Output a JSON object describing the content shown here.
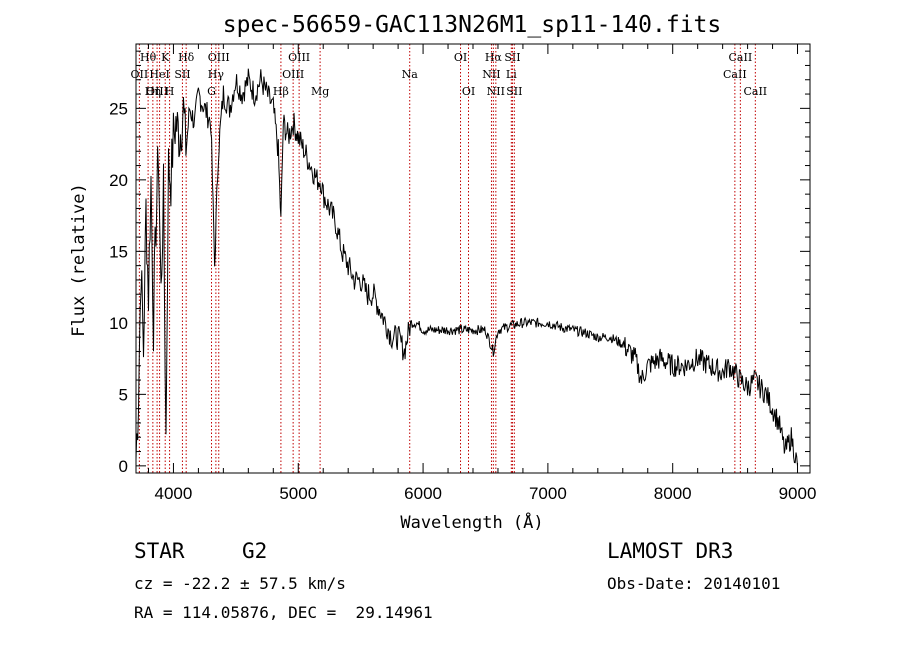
{
  "chart_data": {
    "type": "line",
    "title": "spec-56659-GAC113N26M1_sp11-140.fits",
    "xlabel": "Wavelength (Å)",
    "ylabel": "Flux (relative)",
    "xlim": [
      3700,
      9100
    ],
    "ylim": [
      -0.5,
      29.5
    ],
    "xticks": [
      4000,
      5000,
      6000,
      7000,
      8000,
      9000
    ],
    "yticks": [
      0,
      5,
      10,
      15,
      20,
      25
    ],
    "spectrum": {
      "name": "flux",
      "color": "#000000",
      "x": [
        3700,
        3720,
        3740,
        3760,
        3780,
        3800,
        3820,
        3840,
        3860,
        3880,
        3900,
        3920,
        3940,
        3960,
        3980,
        4000,
        4020,
        4050,
        4080,
        4100,
        4130,
        4170,
        4200,
        4250,
        4300,
        4330,
        4360,
        4400,
        4450,
        4500,
        4550,
        4600,
        4650,
        4700,
        4750,
        4800,
        4840,
        4861,
        4880,
        4920,
        4960,
        5000,
        5050,
        5100,
        5150,
        5180,
        5200,
        5250,
        5300,
        5350,
        5400,
        5450,
        5500,
        5550,
        5600,
        5650,
        5700,
        5750,
        5800,
        5850,
        5900,
        5950,
        6000,
        6100,
        6200,
        6300,
        6400,
        6500,
        6563,
        6600,
        6700,
        6800,
        6900,
        7000,
        7100,
        7200,
        7300,
        7400,
        7500,
        7600,
        7700,
        7750,
        7800,
        7900,
        8000,
        8100,
        8200,
        8300,
        8400,
        8450,
        8500,
        8540,
        8600,
        8660,
        8700,
        8750,
        8800,
        8850,
        8900,
        8950,
        9000
      ],
      "y": [
        0.5,
        5,
        14,
        8,
        18,
        12,
        20,
        10,
        17,
        22,
        12,
        19,
        2,
        21,
        20,
        23,
        24,
        23,
        25,
        22,
        25,
        24,
        26,
        25,
        24,
        14,
        22,
        26,
        25,
        27,
        26,
        27,
        26,
        27,
        26,
        25,
        22,
        17,
        24,
        23,
        24,
        23,
        22,
        21,
        20,
        20,
        19,
        18,
        17,
        15,
        14,
        13,
        13,
        12,
        12,
        11,
        10,
        9,
        9,
        8,
        10,
        10,
        9.5,
        9.5,
        9.5,
        9.5,
        9.5,
        9.5,
        8,
        9.5,
        9.8,
        10,
        10,
        10,
        9.7,
        9.5,
        9.3,
        9,
        9,
        8.5,
        7.5,
        6,
        7,
        7.5,
        7,
        7,
        7.5,
        7,
        6.5,
        7,
        6.5,
        6,
        5.5,
        6,
        5.5,
        5,
        4,
        3,
        1,
        2,
        0
      ]
    },
    "spectral_lines": [
      {
        "label": "Hθ",
        "wavelength": 3797,
        "row": 1
      },
      {
        "label": "OII",
        "wavelength": 3727,
        "row": 2
      },
      {
        "label": "OIII",
        "wavelength": 3869,
        "row": 3
      },
      {
        "label": "K",
        "wavelength": 3934,
        "row": 1
      },
      {
        "label": "HeI",
        "wavelength": 3889,
        "row": 2
      },
      {
        "label": "Hη",
        "wavelength": 3835,
        "row": 3
      },
      {
        "label": "Hδ",
        "wavelength": 4102,
        "row": 1
      },
      {
        "label": "SII",
        "wavelength": 4072,
        "row": 2
      },
      {
        "label": "H",
        "wavelength": 3969,
        "row": 3
      },
      {
        "label": "OIII",
        "wavelength": 4363,
        "row": 1
      },
      {
        "label": "Hγ",
        "wavelength": 4340,
        "row": 2
      },
      {
        "label": "G",
        "wavelength": 4305,
        "row": 3
      },
      {
        "label": "OIII",
        "wavelength": 5007,
        "row": 1
      },
      {
        "label": "OIII",
        "wavelength": 4959,
        "row": 2
      },
      {
        "label": "Hβ",
        "wavelength": 4861,
        "row": 3
      },
      {
        "label": "Mg",
        "wavelength": 5175,
        "row": 3
      },
      {
        "label": "Na",
        "wavelength": 5893,
        "row": 2
      },
      {
        "label": "OI",
        "wavelength": 6300,
        "row": 1
      },
      {
        "label": "OI",
        "wavelength": 6364,
        "row": 3
      },
      {
        "label": "Hα",
        "wavelength": 6563,
        "row": 1
      },
      {
        "label": "NII",
        "wavelength": 6548,
        "row": 2
      },
      {
        "label": "NII",
        "wavelength": 6583,
        "row": 3
      },
      {
        "label": "SII",
        "wavelength": 6716,
        "row": 1
      },
      {
        "label": "Li",
        "wavelength": 6707,
        "row": 2
      },
      {
        "label": "SII",
        "wavelength": 6731,
        "row": 3
      },
      {
        "label": "CaII",
        "wavelength": 8542,
        "row": 1
      },
      {
        "label": "CaII",
        "wavelength": 8498,
        "row": 2
      },
      {
        "label": "CaII",
        "wavelength": 8662,
        "row": 3
      }
    ]
  },
  "info": {
    "object_class": "STAR",
    "subclass": "G2",
    "survey": "LAMOST DR3",
    "redshift_text": "cz = -22.2 ± 57.5 km/s",
    "obs_date": "Obs-Date: 20140101",
    "coords": "RA = 114.05876, DEC =  29.14961"
  },
  "colors": {
    "spectrum": "#000000",
    "line_markers": "#c00000"
  }
}
